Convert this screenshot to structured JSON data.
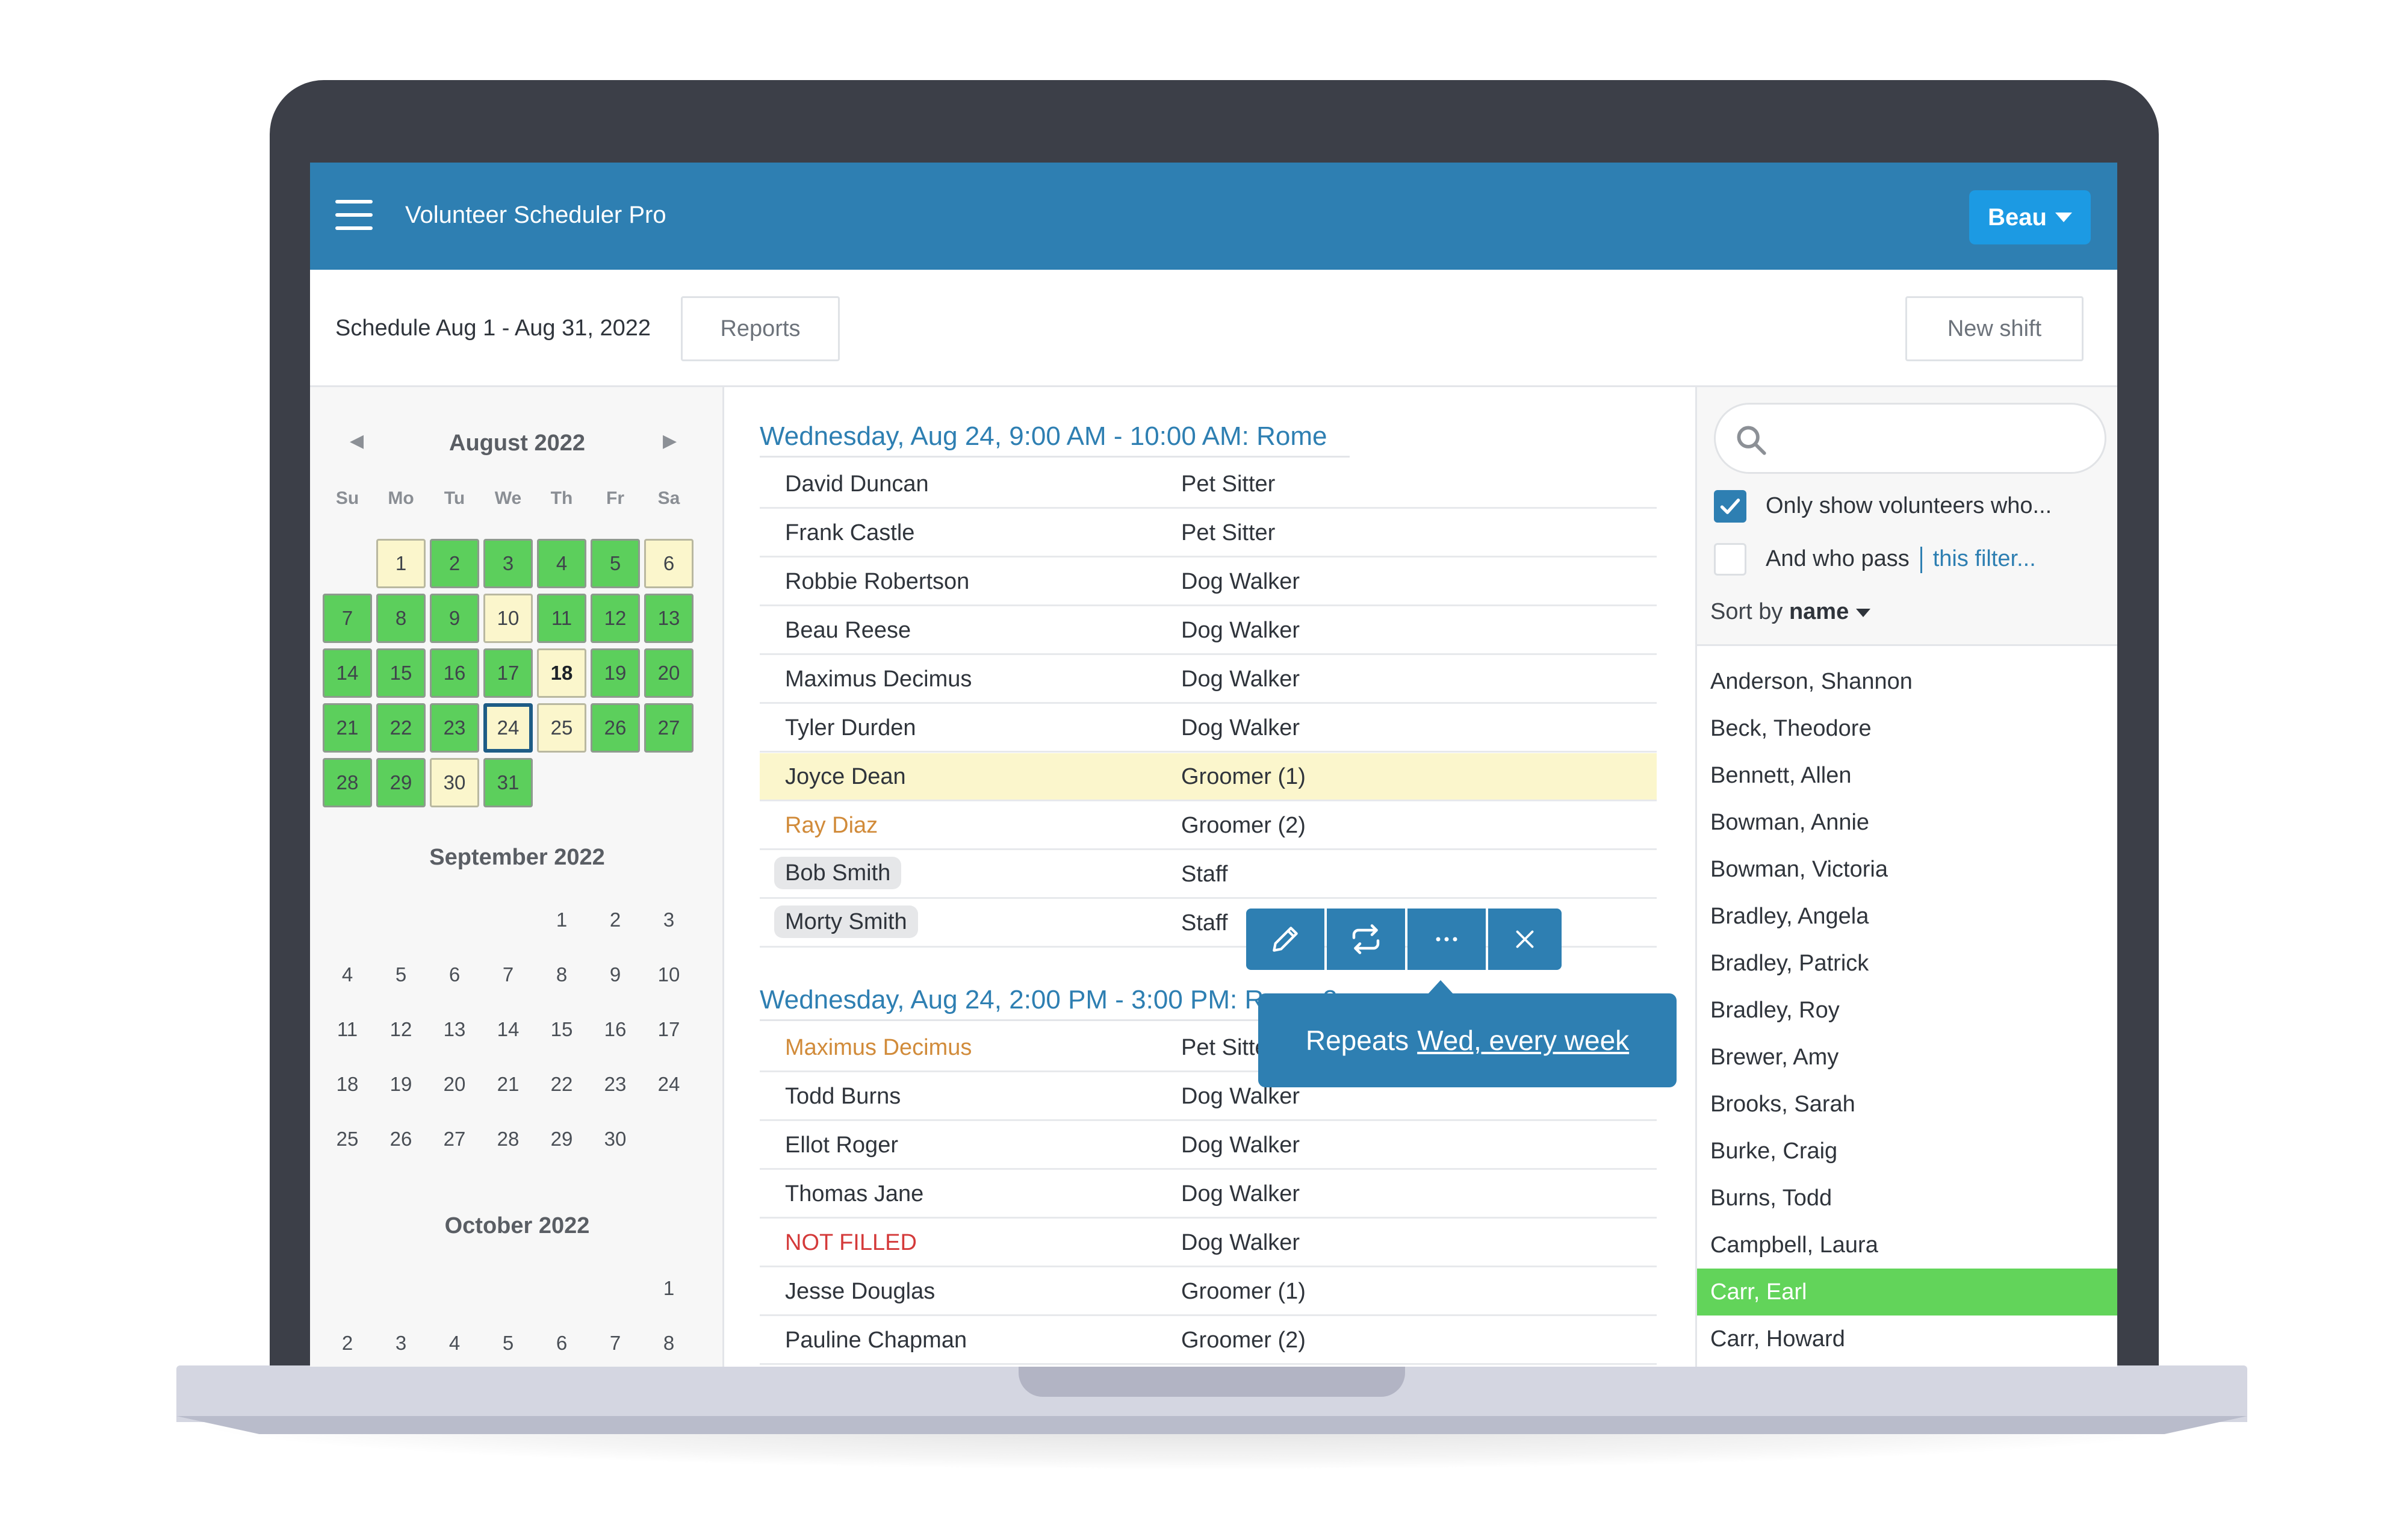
{
  "app": {
    "title": "Volunteer Scheduler Pro",
    "user": "Beau"
  },
  "toolbar": {
    "schedule_range": "Schedule Aug 1 - Aug 31, 2022",
    "reports_label": "Reports",
    "new_shift_label": "New shift"
  },
  "calendar": {
    "prev_arrow": "◀",
    "next_arrow": "▶",
    "weekdays": [
      "Su",
      "Mo",
      "Tu",
      "We",
      "Th",
      "Fr",
      "Sa"
    ],
    "months": [
      {
        "title": "August 2022",
        "weeks": [
          [
            null,
            {
              "d": "1",
              "s": "yellow"
            },
            {
              "d": "2",
              "s": "green"
            },
            {
              "d": "3",
              "s": "green"
            },
            {
              "d": "4",
              "s": "green"
            },
            {
              "d": "5",
              "s": "green"
            },
            {
              "d": "6",
              "s": "yellow"
            }
          ],
          [
            {
              "d": "7",
              "s": "green"
            },
            {
              "d": "8",
              "s": "green"
            },
            {
              "d": "9",
              "s": "green"
            },
            {
              "d": "10",
              "s": "yellow"
            },
            {
              "d": "11",
              "s": "green"
            },
            {
              "d": "12",
              "s": "green"
            },
            {
              "d": "13",
              "s": "green"
            }
          ],
          [
            {
              "d": "14",
              "s": "green"
            },
            {
              "d": "15",
              "s": "green"
            },
            {
              "d": "16",
              "s": "green"
            },
            {
              "d": "17",
              "s": "green"
            },
            {
              "d": "18",
              "s": "yellow",
              "today": true
            },
            {
              "d": "19",
              "s": "green"
            },
            {
              "d": "20",
              "s": "green"
            }
          ],
          [
            {
              "d": "21",
              "s": "green"
            },
            {
              "d": "22",
              "s": "green"
            },
            {
              "d": "23",
              "s": "green"
            },
            {
              "d": "24",
              "s": "yellow",
              "selected": true
            },
            {
              "d": "25",
              "s": "yellow"
            },
            {
              "d": "26",
              "s": "green"
            },
            {
              "d": "27",
              "s": "green"
            }
          ],
          [
            {
              "d": "28",
              "s": "green"
            },
            {
              "d": "29",
              "s": "green"
            },
            {
              "d": "30",
              "s": "yellow"
            },
            {
              "d": "31",
              "s": "green"
            },
            null,
            null,
            null
          ]
        ]
      },
      {
        "title": "September 2022",
        "weeks": [
          [
            null,
            null,
            null,
            null,
            "1",
            "2",
            "3"
          ],
          [
            "4",
            "5",
            "6",
            "7",
            "8",
            "9",
            "10"
          ],
          [
            "11",
            "12",
            "13",
            "14",
            "15",
            "16",
            "17"
          ],
          [
            "18",
            "19",
            "20",
            "21",
            "22",
            "23",
            "24"
          ],
          [
            "25",
            "26",
            "27",
            "28",
            "29",
            "30",
            null
          ]
        ]
      },
      {
        "title": "October 2022",
        "weeks": [
          [
            null,
            null,
            null,
            null,
            null,
            null,
            "1"
          ],
          [
            "2",
            "3",
            "4",
            "5",
            "6",
            "7",
            "8"
          ]
        ]
      }
    ]
  },
  "shifts": [
    {
      "title": "Wednesday, Aug 24, 9:00 AM - 10:00 AM: Rome",
      "rows": [
        {
          "name": "David Duncan",
          "role": "Pet Sitter"
        },
        {
          "name": "Frank Castle",
          "role": "Pet Sitter"
        },
        {
          "name": "Robbie Robertson",
          "role": "Dog Walker"
        },
        {
          "name": "Beau Reese",
          "role": "Dog Walker"
        },
        {
          "name": "Maximus Decimus",
          "role": "Dog Walker"
        },
        {
          "name": "Tyler Durden",
          "role": "Dog Walker"
        },
        {
          "name": "Joyce Dean",
          "role": "Groomer (1)",
          "highlight": true
        },
        {
          "name": "Ray Diaz",
          "role": "Groomer (2)",
          "style": "orange"
        },
        {
          "name": "Bob Smith",
          "role": "Staff",
          "style": "chip"
        },
        {
          "name": "Morty Smith",
          "role": "Staff",
          "style": "chip"
        }
      ]
    },
    {
      "title": "Wednesday, Aug 24, 2:00 PM - 3:00 PM: Rome 2",
      "rows": [
        {
          "name": "Maximus Decimus",
          "role": "Pet Sitter",
          "style": "orange"
        },
        {
          "name": "Todd Burns",
          "role": "Dog Walker"
        },
        {
          "name": "Ellot Roger",
          "role": "Dog Walker"
        },
        {
          "name": "Thomas Jane",
          "role": "Dog Walker"
        },
        {
          "name": "NOT FILLED",
          "role": "Dog Walker",
          "style": "red"
        },
        {
          "name": "Jesse Douglas",
          "role": "Groomer (1)"
        },
        {
          "name": "Pauline Chapman",
          "role": "Groomer (2)"
        }
      ]
    }
  ],
  "tooltip": {
    "prefix": "Repeats",
    "link": "Wed, every week"
  },
  "filters": {
    "search_placeholder": "",
    "only_show_label": "Only show volunteers who...",
    "only_show_checked": true,
    "and_who_pass_label": "And who pass",
    "filter_link": "this filter...",
    "and_who_pass_checked": false,
    "sort_prefix": "Sort by",
    "sort_field": "name"
  },
  "volunteers": [
    {
      "name": "Anderson, Shannon"
    },
    {
      "name": "Beck, Theodore"
    },
    {
      "name": "Bennett, Allen"
    },
    {
      "name": "Bowman, Annie"
    },
    {
      "name": "Bowman, Victoria"
    },
    {
      "name": "Bradley, Angela"
    },
    {
      "name": "Bradley, Patrick"
    },
    {
      "name": "Bradley, Roy"
    },
    {
      "name": "Brewer, Amy"
    },
    {
      "name": "Brooks, Sarah"
    },
    {
      "name": "Burke, Craig"
    },
    {
      "name": "Burns, Todd"
    },
    {
      "name": "Campbell, Laura"
    },
    {
      "name": "Carr, Earl",
      "selected": true
    },
    {
      "name": "Carr, Howard"
    }
  ],
  "colors": {
    "primary": "#2e7fb2",
    "accent": "#1c9ae3",
    "filled_day": "#5ccf5c",
    "partial_day": "#fbf6cc",
    "selected_volunteer": "#62d45a",
    "unfilled": "#d43a3a",
    "warning": "#d18b3a"
  }
}
